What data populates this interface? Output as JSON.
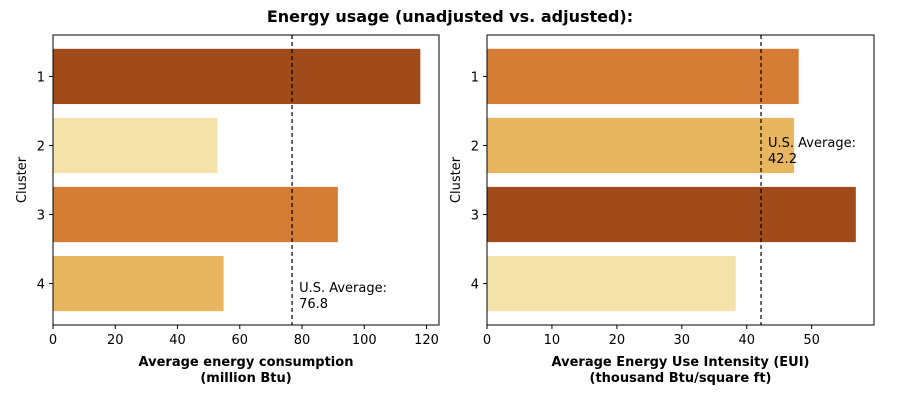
{
  "figure_title": "Energy usage (unadjusted vs. adjusted):",
  "chart_data": [
    {
      "type": "bar",
      "orientation": "horizontal",
      "categories": [
        "1",
        "2",
        "3",
        "4"
      ],
      "values": [
        118,
        52.8,
        91.5,
        54.8
      ],
      "colors": [
        "#a24b1a",
        "#f3e3ab",
        "#d67d35",
        "#e8b65f"
      ],
      "xlabel_lines": [
        "Average energy consumption",
        "(million Btu)"
      ],
      "ylabel": "Cluster",
      "xlim": [
        0,
        124
      ],
      "xticks": [
        0,
        20,
        40,
        60,
        80,
        100,
        120
      ],
      "reference_line": {
        "value": 76.8,
        "label_lines": [
          "U.S. Average:",
          "76.8"
        ]
      },
      "grid": false
    },
    {
      "type": "bar",
      "orientation": "horizontal",
      "categories": [
        "1",
        "2",
        "3",
        "4"
      ],
      "values": [
        48,
        47.3,
        56.8,
        38.3
      ],
      "colors": [
        "#d67d35",
        "#e8b65f",
        "#a24b1a",
        "#f3e3ab"
      ],
      "xlabel_lines": [
        "Average Energy Use Intensity (EUI)",
        "(thousand Btu/square ft)"
      ],
      "ylabel": "Cluster",
      "xlim": [
        0,
        59.6
      ],
      "xticks": [
        0,
        10,
        20,
        30,
        40,
        50
      ],
      "reference_line": {
        "value": 42.2,
        "label_lines": [
          "U.S. Average:",
          "42.2"
        ]
      },
      "grid": false
    }
  ]
}
